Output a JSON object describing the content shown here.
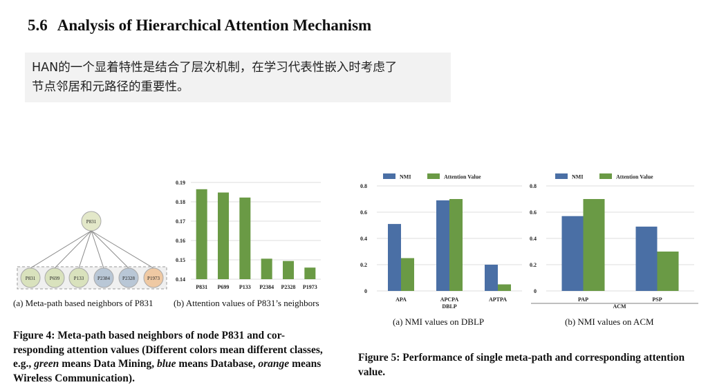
{
  "section": {
    "number": "5.6",
    "title": "Analysis of Hierarchical Attention Mechanism"
  },
  "note": {
    "line1": "HAN的一个显着特性是结合了层次机制，在学习代表性嵌入时考虑了",
    "line2": "节点邻居和元路径的重要性。"
  },
  "graph": {
    "center": "P831",
    "neighbors": [
      {
        "label": "P831",
        "class": "green"
      },
      {
        "label": "P699",
        "class": "green"
      },
      {
        "label": "P133",
        "class": "green"
      },
      {
        "label": "P2384",
        "class": "blue"
      },
      {
        "label": "P2328",
        "class": "blue"
      },
      {
        "label": "P1973",
        "class": "orange"
      }
    ],
    "colors": {
      "center": "#e3e8c9",
      "green": "#d9e2bd",
      "blue": "#b9c7d6",
      "orange": "#efc9a3",
      "border": "#a9a9a9"
    }
  },
  "captions": {
    "fig4a": "(a)  Meta-path based neighbors of P831",
    "fig4b": "(b)  Attention values of P831’s neighbors",
    "fig5a": "(a)  NMI values on DBLP",
    "fig5b": "(b)  NMI values on ACM"
  },
  "figure4_caption": {
    "prefix": "Figure 4: Meta-path based neighbors of node P831 and cor- responding attention values (Different colors mean different classes, e.g., ",
    "green": "green",
    "mid1": " means Data Mining, ",
    "blue": "blue",
    "mid2": " means Database, ",
    "orange": "orange",
    "suffix": " means Wireless Communication)."
  },
  "figure5_caption": "Figure 5: Performance of single meta-path and corresponding attention value.",
  "chart_data": [
    {
      "type": "bar",
      "title": "",
      "categories": [
        "P831",
        "P699",
        "P133",
        "P2384",
        "P2328",
        "P1973"
      ],
      "values": [
        0.1865,
        0.1848,
        0.1822,
        0.1506,
        0.1494,
        0.146
      ],
      "ylim": [
        0.14,
        0.19
      ],
      "yticks": [
        "0.14",
        "0.15",
        "0.16",
        "0.17",
        "0.18",
        "0.19"
      ],
      "color": "#6a9a45",
      "xlabel": "",
      "ylabel": ""
    },
    {
      "type": "bar",
      "title": "",
      "categories": [
        "APA",
        "APCPA",
        "APTPA"
      ],
      "xlabel": "DBLP",
      "series": [
        {
          "name": "NMI",
          "values": [
            0.51,
            0.69,
            0.2
          ],
          "color": "#4a6fa5"
        },
        {
          "name": "Attention Value",
          "values": [
            0.25,
            0.7,
            0.05
          ],
          "color": "#6a9a45"
        }
      ],
      "ylim": [
        0,
        0.8
      ],
      "yticks": [
        "0",
        "0.2",
        "0.4",
        "0.6",
        "0.8"
      ],
      "legend": "top"
    },
    {
      "type": "bar",
      "title": "",
      "categories": [
        "PAP",
        "PSP"
      ],
      "xlabel": "ACM",
      "series": [
        {
          "name": "NMI",
          "values": [
            0.57,
            0.49
          ],
          "color": "#4a6fa5"
        },
        {
          "name": "Attention Value",
          "values": [
            0.7,
            0.3
          ],
          "color": "#6a9a45"
        }
      ],
      "ylim": [
        0,
        0.8
      ],
      "yticks": [
        "0",
        "0.2",
        "0.4",
        "0.6",
        "0.8"
      ],
      "legend": "top"
    }
  ]
}
